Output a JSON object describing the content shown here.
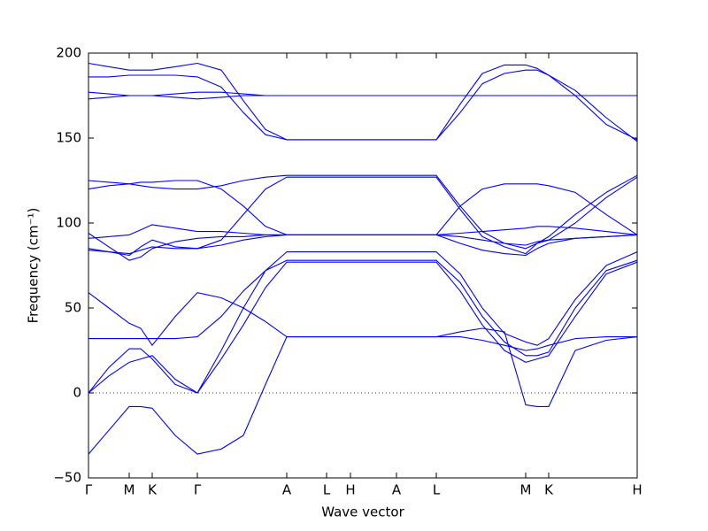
{
  "chart_data": {
    "type": "line",
    "xlabel": "Wave vector",
    "ylabel": "Frequency (cm⁻¹)",
    "color": "#0000ff",
    "zero_line": true,
    "xlim": [
      0,
      6.2
    ],
    "ylim": [
      -50,
      200
    ],
    "yticks": [
      {
        "value": -50,
        "label": "−50"
      },
      0,
      50,
      100,
      150,
      200
    ],
    "xticks": [
      {
        "value": 0,
        "label": "Γ"
      },
      {
        "value": 0.46,
        "label": "M"
      },
      {
        "value": 0.72,
        "label": "K"
      },
      {
        "value": 1.23,
        "label": "Γ"
      },
      {
        "value": 2.24,
        "label": "A"
      },
      {
        "value": 2.69,
        "label": "L"
      },
      {
        "value": 2.96,
        "label": "H"
      },
      {
        "value": 3.48,
        "label": "A"
      },
      {
        "value": 3.93,
        "label": "L"
      },
      {
        "value": 4.94,
        "label": "M"
      },
      {
        "value": 5.2,
        "label": "K"
      },
      {
        "value": 6.2,
        "label": "H"
      }
    ],
    "x": [
      0,
      0.23,
      0.46,
      0.59,
      0.72,
      0.98,
      1.23,
      1.5,
      1.75,
      2.0,
      2.24,
      2.69,
      2.96,
      3.48,
      3.93,
      4.2,
      4.45,
      4.7,
      4.94,
      5.07,
      5.2,
      5.5,
      5.85,
      6.2
    ],
    "series": [
      {
        "values": [
          -36,
          -22,
          -8,
          -8,
          -9,
          -25,
          -36,
          -33,
          -25,
          5,
          33,
          33,
          33,
          33,
          33,
          36,
          38,
          36,
          -7,
          -8,
          -8,
          25,
          31,
          33
        ]
      },
      {
        "values": [
          0,
          10,
          18,
          20,
          22,
          8,
          0,
          20,
          40,
          62,
          77,
          77,
          77,
          77,
          77,
          60,
          40,
          25,
          18,
          20,
          22,
          45,
          70,
          77
        ]
      },
      {
        "values": [
          0,
          15,
          26,
          26,
          20,
          5,
          0,
          25,
          50,
          72,
          83,
          83,
          83,
          83,
          83,
          70,
          50,
          35,
          30,
          28,
          32,
          55,
          75,
          83
        ]
      },
      {
        "values": [
          32,
          32,
          32,
          32,
          32,
          32,
          33,
          45,
          60,
          72,
          78,
          78,
          78,
          78,
          78,
          65,
          45,
          30,
          22,
          22,
          24,
          50,
          72,
          78
        ]
      },
      {
        "values": [
          59,
          50,
          41,
          38,
          28,
          45,
          59,
          56,
          50,
          42,
          33,
          33,
          33,
          33,
          33,
          33,
          31,
          28,
          25,
          26,
          28,
          32,
          33,
          33
        ]
      },
      {
        "values": [
          85,
          83,
          81,
          86,
          90,
          86,
          85,
          87,
          90,
          92,
          93,
          93,
          93,
          93,
          93,
          88,
          84,
          82,
          81,
          85,
          88,
          91,
          92,
          93
        ]
      },
      {
        "values": [
          91,
          92,
          93,
          96,
          99,
          97,
          95,
          95,
          94,
          93,
          93,
          93,
          93,
          93,
          93,
          94,
          95,
          96,
          97,
          98,
          98,
          97,
          95,
          93
        ]
      },
      {
        "values": [
          94,
          86,
          78,
          80,
          85,
          89,
          91,
          92,
          92,
          93,
          93,
          93,
          93,
          93,
          93,
          92,
          90,
          88,
          87,
          89,
          90,
          91,
          92,
          93
        ]
      },
      {
        "values": [
          120,
          122,
          123,
          124,
          124,
          125,
          125,
          120,
          110,
          98,
          93,
          93,
          93,
          93,
          93,
          110,
          120,
          123,
          123,
          123,
          122,
          118,
          105,
          93
        ]
      },
      {
        "values": [
          125,
          124,
          123,
          122,
          121,
          120,
          120,
          122,
          125,
          127,
          128,
          128,
          128,
          128,
          128,
          110,
          95,
          88,
          85,
          88,
          92,
          105,
          118,
          128
        ]
      },
      {
        "values": [
          84,
          83,
          82,
          84,
          86,
          85,
          85,
          90,
          105,
          120,
          127,
          127,
          127,
          127,
          127,
          108,
          92,
          86,
          82,
          88,
          90,
          100,
          115,
          127
        ]
      },
      {
        "values": [
          177,
          176,
          175,
          175,
          175,
          176,
          177,
          177,
          176,
          175,
          175,
          175,
          175,
          175,
          175,
          175,
          175,
          175,
          175,
          175,
          175,
          175,
          175,
          175
        ]
      },
      {
        "values": [
          173,
          174,
          175,
          175,
          175,
          174,
          173,
          174,
          175,
          175,
          175,
          175,
          175,
          175,
          175,
          175,
          175,
          175,
          175,
          175,
          175,
          175,
          175,
          175
        ]
      },
      {
        "values": [
          186,
          186,
          187,
          187,
          187,
          187,
          186,
          180,
          165,
          152,
          149,
          149,
          149,
          149,
          149,
          165,
          182,
          188,
          190,
          190,
          187,
          175,
          158,
          149
        ]
      },
      {
        "values": [
          194,
          192,
          190,
          190,
          190,
          192,
          194,
          190,
          172,
          155,
          149,
          149,
          149,
          149,
          149,
          170,
          188,
          193,
          193,
          191,
          187,
          178,
          162,
          148
        ]
      }
    ]
  }
}
